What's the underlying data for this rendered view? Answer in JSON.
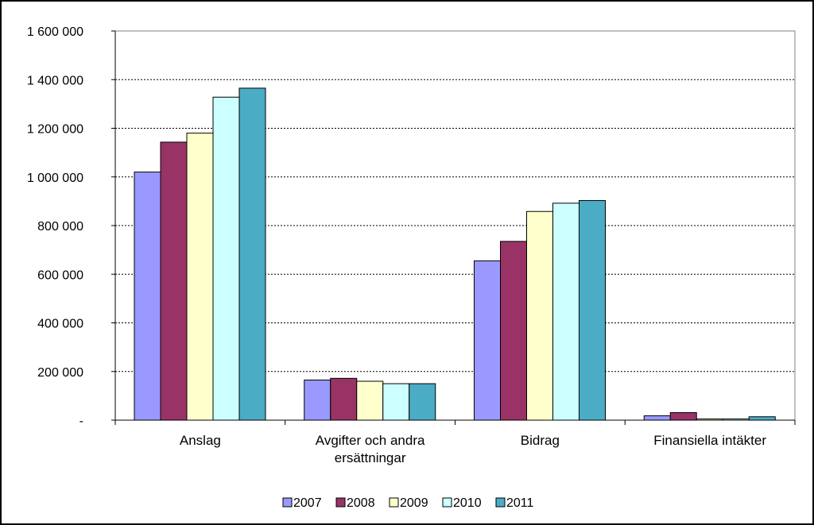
{
  "chart_data": {
    "type": "bar",
    "categories": [
      [
        "Anslag"
      ],
      [
        "Avgifter och andra",
        "ersättningar"
      ],
      [
        "Bidrag"
      ],
      [
        "Finansiella intäkter"
      ]
    ],
    "series": [
      {
        "name": "2007",
        "color": "#9999FF",
        "values": [
          1020000,
          165000,
          655000,
          18000
        ]
      },
      {
        "name": "2008",
        "color": "#993366",
        "values": [
          1143000,
          172000,
          735000,
          31000
        ]
      },
      {
        "name": "2009",
        "color": "#FFFFCC",
        "values": [
          1180000,
          160000,
          858000,
          5000
        ]
      },
      {
        "name": "2010",
        "color": "#CCFFFF",
        "values": [
          1328000,
          150000,
          892000,
          5000
        ]
      },
      {
        "name": "2011",
        "color": "#4BACC6",
        "values": [
          1365000,
          150000,
          903000,
          14000
        ]
      }
    ],
    "ylim": [
      0,
      1600000
    ],
    "yticks": [
      0,
      200000,
      400000,
      600000,
      800000,
      1000000,
      1200000,
      1400000,
      1600000
    ],
    "ytick_labels": [
      "-",
      "200 000",
      "400 000",
      "600 000",
      "800 000",
      "1 000 000",
      "1 200 000",
      "1 400 000",
      "1 600 000"
    ],
    "grid": true,
    "legend": "bottom"
  }
}
